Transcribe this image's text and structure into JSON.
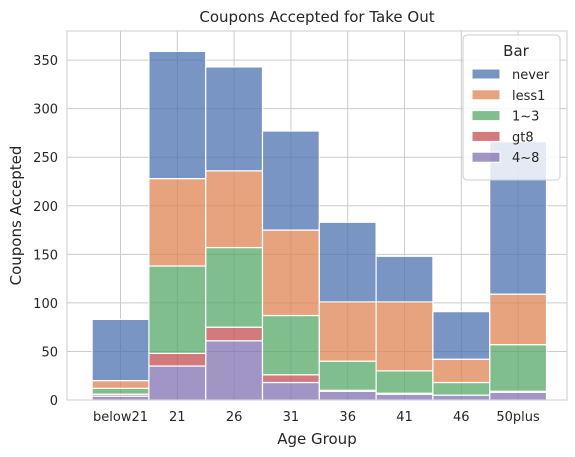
{
  "chart_data": {
    "type": "bar",
    "stacked": true,
    "title": "Coupons Accepted for Take Out",
    "xlabel": "Age Group",
    "ylabel": "Coupons Accepted",
    "categories": [
      "below21",
      "21",
      "26",
      "31",
      "36",
      "41",
      "46",
      "50plus"
    ],
    "ylim": [
      0,
      380
    ],
    "yticks": [
      0,
      50,
      100,
      150,
      200,
      250,
      300,
      350
    ],
    "grid": true,
    "legend": {
      "title": "Bar",
      "placement": "top-right"
    },
    "series": [
      {
        "name": "4~8",
        "color": "#8172b3",
        "values": [
          4,
          35,
          61,
          18,
          9,
          6,
          5,
          8
        ]
      },
      {
        "name": "gt8",
        "color": "#c44e52",
        "values": [
          2,
          13,
          14,
          8,
          1,
          1,
          0,
          1
        ]
      },
      {
        "name": "1~3",
        "color": "#55a868",
        "values": [
          6,
          90,
          82,
          61,
          30,
          23,
          13,
          48
        ]
      },
      {
        "name": "less1",
        "color": "#dd8452",
        "values": [
          8,
          90,
          79,
          88,
          61,
          71,
          24,
          52
        ]
      },
      {
        "name": "never",
        "color": "#4c72b0",
        "values": [
          63,
          131,
          107,
          102,
          82,
          47,
          49,
          157
        ]
      }
    ],
    "legend_order": [
      "never",
      "less1",
      "1~3",
      "gt8",
      "4~8"
    ]
  }
}
